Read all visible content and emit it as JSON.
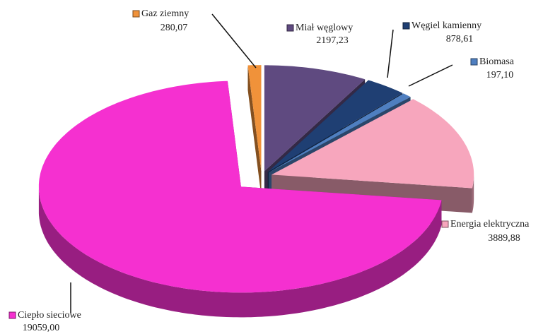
{
  "chart_data": {
    "type": "pie3d",
    "categories": [
      "Miał węglowy",
      "Węgiel kamienny",
      "Biomasa",
      "Energia elektryczna",
      "Ciepło sieciowe",
      "Gaz ziemny"
    ],
    "values": [
      2197.23,
      878.61,
      197.1,
      3889.88,
      19059.0,
      280.07
    ],
    "value_labels": [
      "2197,23",
      "878,61",
      "197,10",
      "3889,88",
      "19059,00",
      "280,07"
    ],
    "colors": [
      "#5f4a80",
      "#1f3f73",
      "#4f7fc0",
      "#f7a6bd",
      "#f530d0",
      "#f0923a"
    ]
  }
}
